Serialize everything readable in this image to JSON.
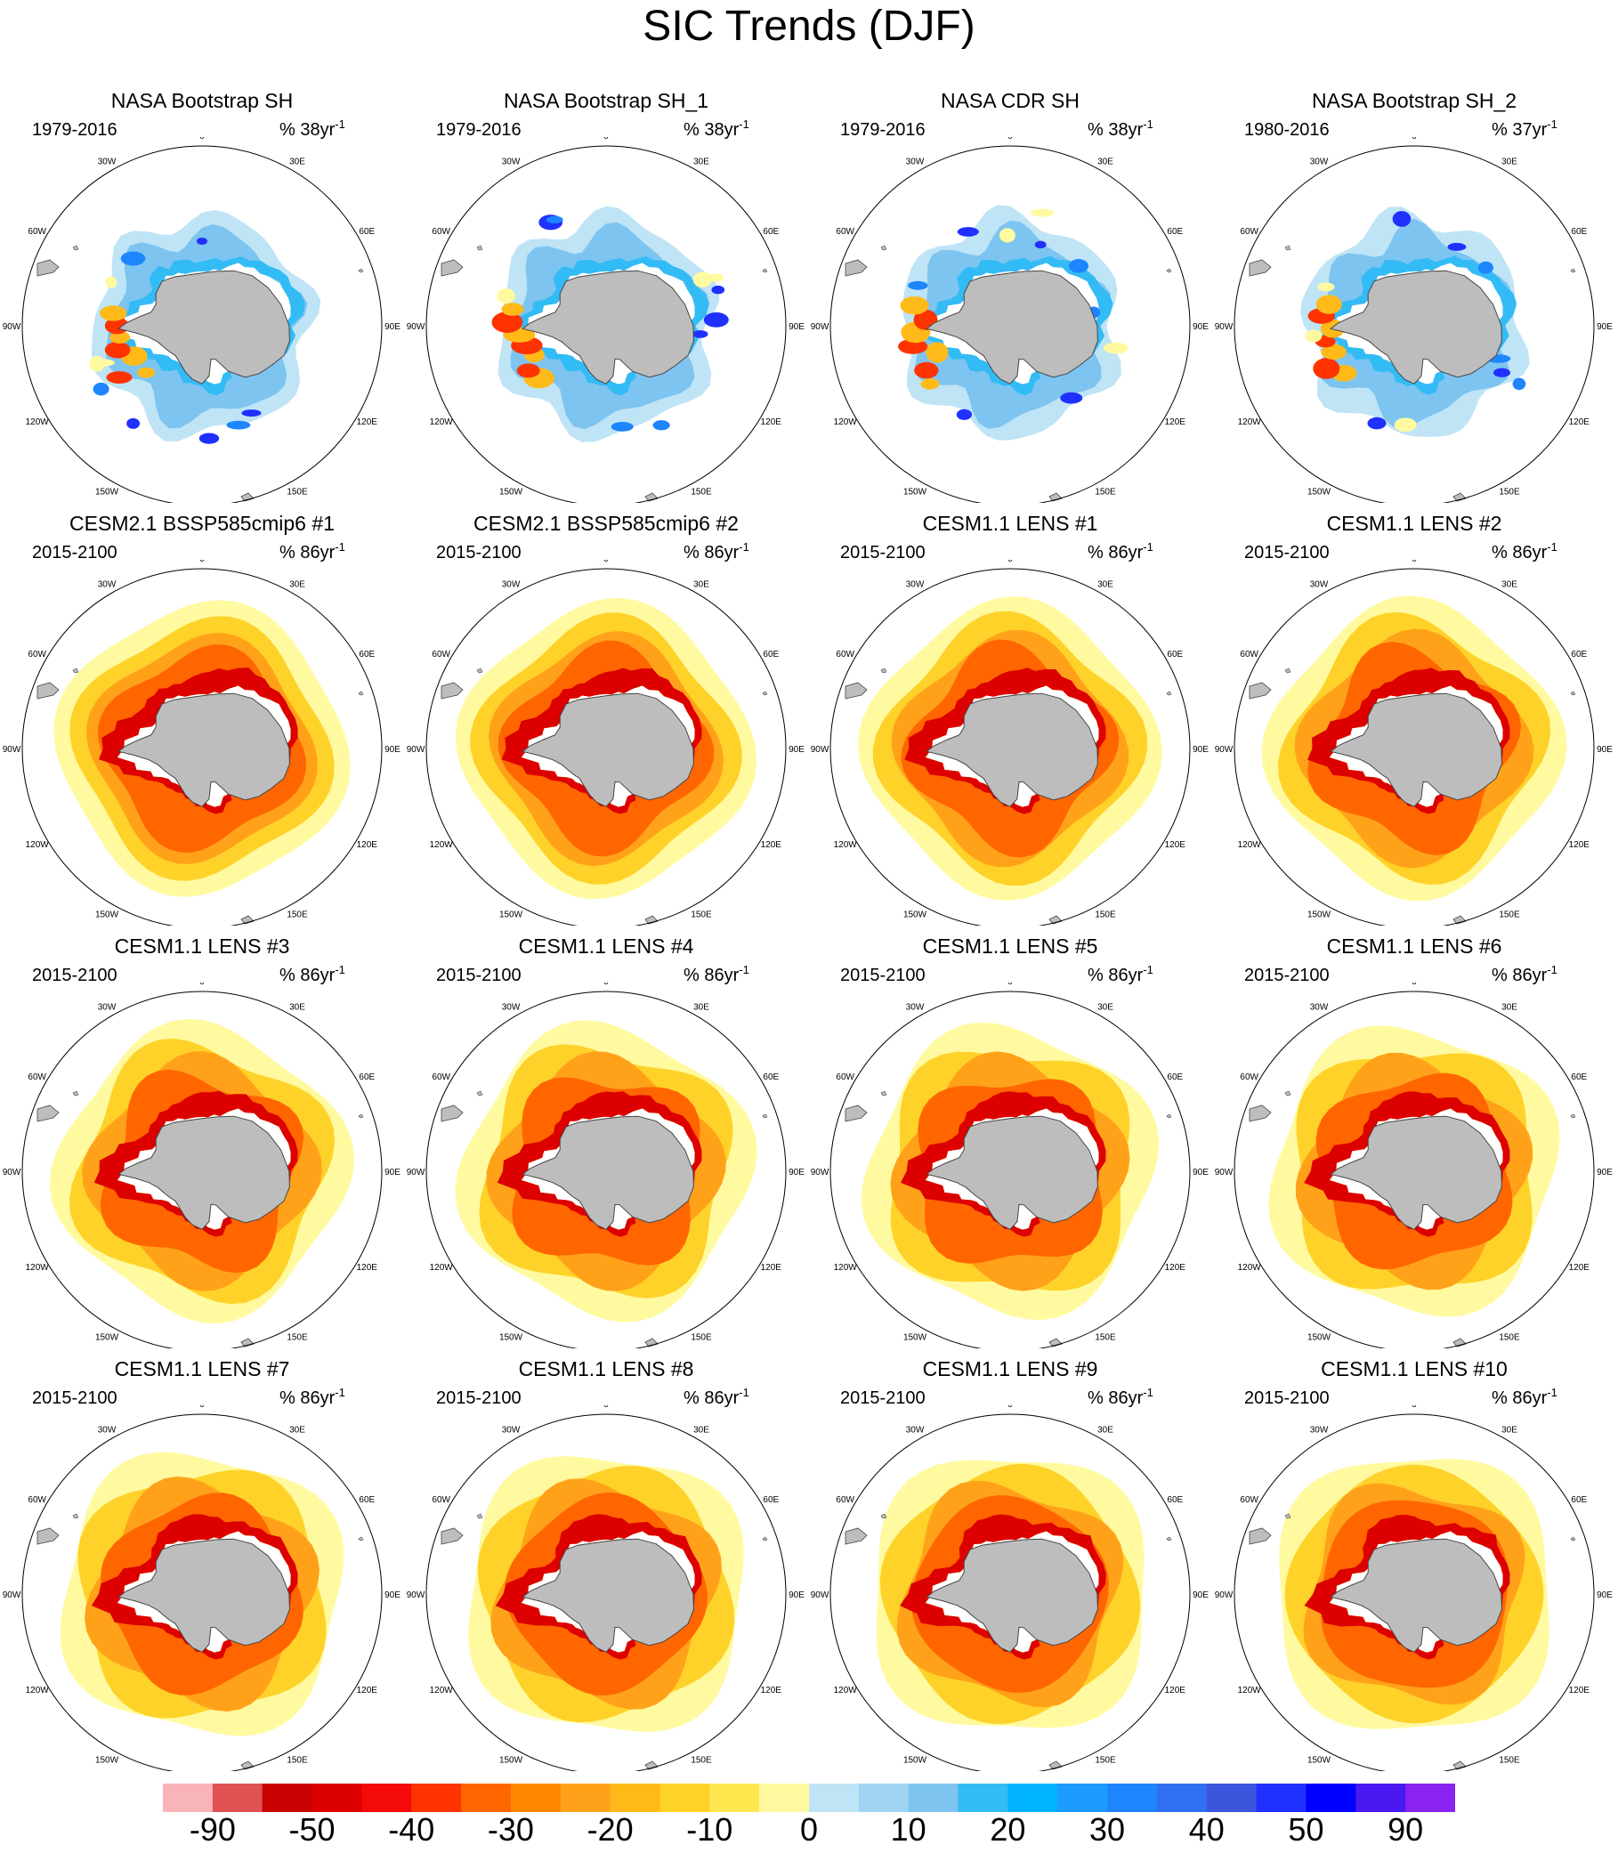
{
  "title": "SIC Trends (DJF)",
  "lon_labels": [
    "0",
    "30E",
    "60E",
    "90E",
    "120E",
    "150E",
    "180",
    "150W",
    "120W",
    "90W",
    "60W",
    "30W"
  ],
  "panels": [
    {
      "title": "NASA Bootstrap SH",
      "years": "1979-2016",
      "units": "% 38yr",
      "exp": "-1",
      "regime": "obs",
      "variant": 0
    },
    {
      "title": "NASA Bootstrap SH_1",
      "years": "1979-2016",
      "units": "% 38yr",
      "exp": "-1",
      "regime": "obs",
      "variant": 1
    },
    {
      "title": "NASA CDR SH",
      "years": "1979-2016",
      "units": "% 38yr",
      "exp": "-1",
      "regime": "obs",
      "variant": 2
    },
    {
      "title": "NASA Bootstrap SH_2",
      "years": "1980-2016",
      "units": "% 37yr",
      "exp": "-1",
      "regime": "obs",
      "variant": 3
    },
    {
      "title": "CESM2.1 BSSP585cmip6 #1",
      "years": "2015-2100",
      "units": "% 86yr",
      "exp": "-1",
      "regime": "model",
      "variant": 0
    },
    {
      "title": "CESM2.1 BSSP585cmip6 #2",
      "years": "2015-2100",
      "units": "% 86yr",
      "exp": "-1",
      "regime": "model",
      "variant": 1
    },
    {
      "title": "CESM1.1 LENS #1",
      "years": "2015-2100",
      "units": "% 86yr",
      "exp": "-1",
      "regime": "model",
      "variant": 2
    },
    {
      "title": "CESM1.1 LENS #2",
      "years": "2015-2100",
      "units": "% 86yr",
      "exp": "-1",
      "regime": "model",
      "variant": 3
    },
    {
      "title": "CESM1.1 LENS #3",
      "years": "2015-2100",
      "units": "% 86yr",
      "exp": "-1",
      "regime": "model",
      "variant": 4
    },
    {
      "title": "CESM1.1 LENS #4",
      "years": "2015-2100",
      "units": "% 86yr",
      "exp": "-1",
      "regime": "model",
      "variant": 5
    },
    {
      "title": "CESM1.1 LENS #5",
      "years": "2015-2100",
      "units": "% 86yr",
      "exp": "-1",
      "regime": "model",
      "variant": 6
    },
    {
      "title": "CESM1.1 LENS #6",
      "years": "2015-2100",
      "units": "% 86yr",
      "exp": "-1",
      "regime": "model",
      "variant": 7
    },
    {
      "title": "CESM1.1 LENS #7",
      "years": "2015-2100",
      "units": "% 86yr",
      "exp": "-1",
      "regime": "model",
      "variant": 8
    },
    {
      "title": "CESM1.1 LENS #8",
      "years": "2015-2100",
      "units": "% 86yr",
      "exp": "-1",
      "regime": "model",
      "variant": 9
    },
    {
      "title": "CESM1.1 LENS #9",
      "years": "2015-2100",
      "units": "% 86yr",
      "exp": "-1",
      "regime": "model",
      "variant": 10
    },
    {
      "title": "CESM1.1 LENS #10",
      "years": "2015-2100",
      "units": "% 86yr",
      "exp": "-1",
      "regime": "model",
      "variant": 11
    }
  ],
  "colorbar": {
    "colors": [
      "#f9b4b8",
      "#e05252",
      "#c80000",
      "#dc0000",
      "#f50a0a",
      "#ff3300",
      "#ff6600",
      "#ff8800",
      "#ffa21a",
      "#ffba1a",
      "#ffd22a",
      "#ffe84f",
      "#fffaa0",
      "#bfe4f6",
      "#a0d4f2",
      "#7dc4f0",
      "#33bbf5",
      "#00b4ff",
      "#1e9bff",
      "#1e85ff",
      "#3070f0",
      "#3c55dc",
      "#2030ff",
      "#0000ff",
      "#4a18f0",
      "#8a22f0"
    ],
    "labels": [
      "-90",
      "-50",
      "-40",
      "-30",
      "-20",
      "-10",
      "0",
      "10",
      "20",
      "30",
      "40",
      "50",
      "90"
    ]
  }
}
